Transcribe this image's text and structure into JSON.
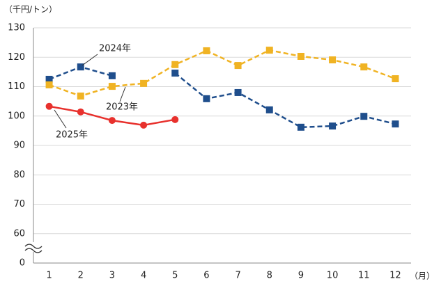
{
  "chart_data": {
    "type": "line",
    "y_label": "（千円/トン）",
    "x_label": "（月）",
    "categories": [
      "1",
      "2",
      "3",
      "4",
      "5",
      "6",
      "7",
      "8",
      "9",
      "10",
      "11",
      "12"
    ],
    "series": [
      {
        "name": "2024年",
        "color": "#1f4e8c",
        "dash": true,
        "marker": "square",
        "values": [
          112.5,
          116.7,
          113.7,
          null,
          114.6,
          105.9,
          108.0,
          102.1,
          96.2,
          96.6,
          99.9,
          97.3
        ]
      },
      {
        "name": "2023年",
        "color": "#f0b323",
        "dash": true,
        "marker": "square",
        "values": [
          110.6,
          106.8,
          110.1,
          111.1,
          117.5,
          122.2,
          117.2,
          122.4,
          120.3,
          119.1,
          116.7,
          112.7
        ]
      },
      {
        "name": "2025年",
        "color": "#e8312d",
        "dash": false,
        "marker": "circle",
        "values": [
          103.3,
          101.4,
          98.5,
          96.9,
          98.8,
          null,
          null,
          null,
          null,
          null,
          null,
          null
        ]
      }
    ],
    "ylim": [
      0,
      130
    ],
    "axis_break": [
      0,
      50
    ],
    "yticks": [
      0,
      60,
      70,
      80,
      90,
      100,
      110,
      120,
      130
    ],
    "grid": true
  }
}
